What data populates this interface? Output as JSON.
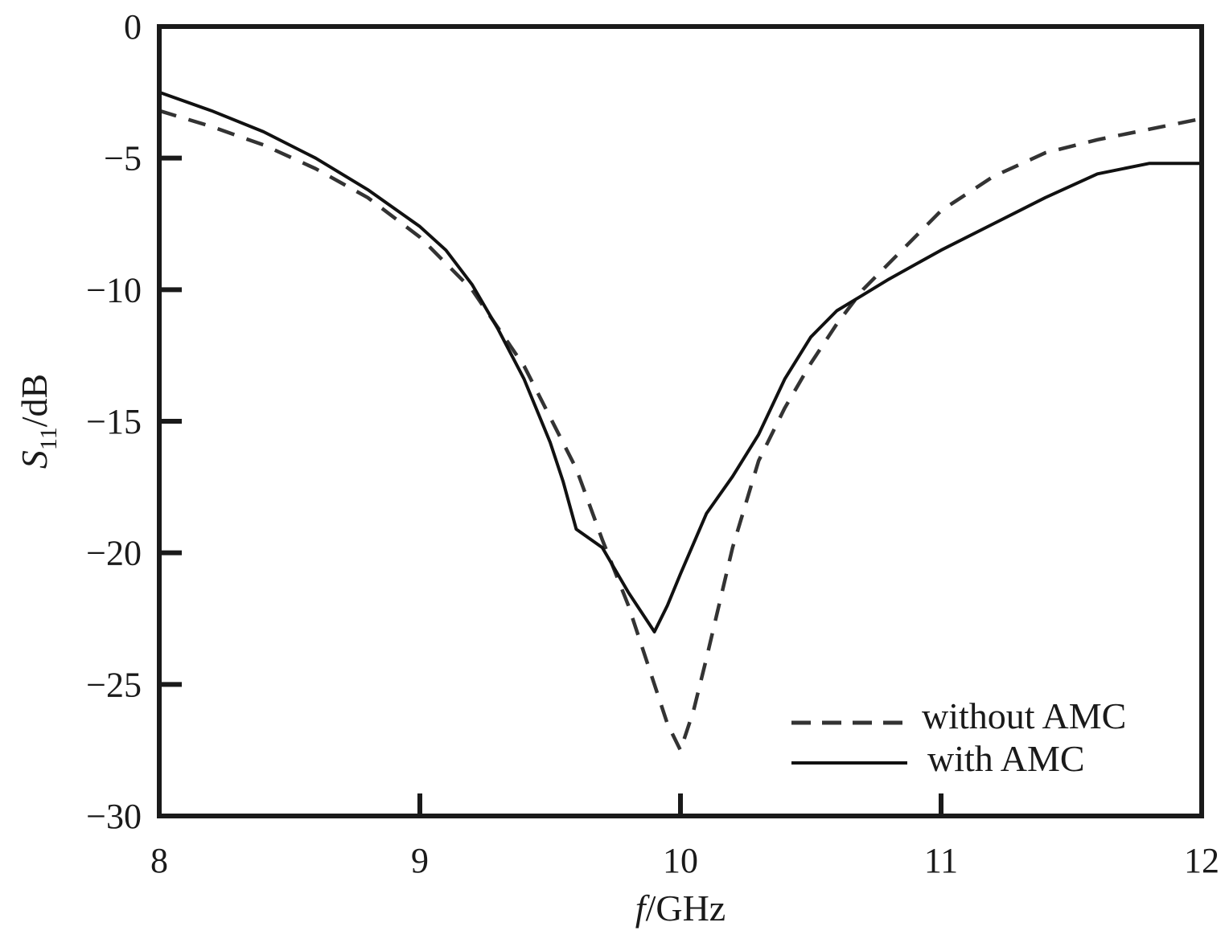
{
  "chart_data": {
    "type": "line",
    "xlabel": {
      "italic": "f",
      "rest": "/GHz"
    },
    "ylabel": {
      "italic": "S",
      "sub": "11",
      "rest": "/dB"
    },
    "xlim": [
      8,
      12
    ],
    "ylim": [
      -30,
      0
    ],
    "xticks": [
      8,
      9,
      10,
      11,
      12
    ],
    "xtick_labels": [
      "8",
      "9",
      "10",
      "11",
      "12"
    ],
    "yticks": [
      0,
      -5,
      -10,
      -15,
      -20,
      -25,
      -30
    ],
    "ytick_labels": [
      "0",
      "−5",
      "−10",
      "−15",
      "−20",
      "−25",
      "−30"
    ],
    "grid": false,
    "legend_position": "bottom-right",
    "series": [
      {
        "name": "without AMC",
        "style": "dashed",
        "color": "#333333",
        "x": [
          8.0,
          8.2,
          8.4,
          8.6,
          8.8,
          9.0,
          9.2,
          9.4,
          9.6,
          9.7,
          9.8,
          9.9,
          9.95,
          10.0,
          10.05,
          10.1,
          10.2,
          10.3,
          10.4,
          10.5,
          10.6,
          10.7,
          10.8,
          11.0,
          11.2,
          11.4,
          11.6,
          11.8,
          12.0
        ],
        "y": [
          -3.2,
          -3.8,
          -4.5,
          -5.4,
          -6.5,
          -8.0,
          -10.0,
          -12.9,
          -16.8,
          -19.5,
          -22.0,
          -25.0,
          -26.5,
          -27.5,
          -26.0,
          -24.0,
          -19.8,
          -16.5,
          -14.5,
          -12.8,
          -11.3,
          -10.0,
          -9.0,
          -7.0,
          -5.7,
          -4.8,
          -4.3,
          -3.9,
          -3.5
        ]
      },
      {
        "name": "with AMC",
        "style": "solid",
        "color": "#111111",
        "x": [
          8.0,
          8.2,
          8.4,
          8.6,
          8.8,
          9.0,
          9.1,
          9.2,
          9.3,
          9.4,
          9.5,
          9.55,
          9.6,
          9.7,
          9.8,
          9.9,
          9.95,
          10.0,
          10.1,
          10.2,
          10.3,
          10.4,
          10.5,
          10.6,
          10.7,
          10.8,
          11.0,
          11.2,
          11.4,
          11.6,
          11.8,
          12.0
        ],
        "y": [
          -2.5,
          -3.2,
          -4.0,
          -5.0,
          -6.2,
          -7.6,
          -8.5,
          -9.8,
          -11.5,
          -13.4,
          -15.8,
          -17.3,
          -19.1,
          -19.8,
          -21.5,
          -23.0,
          -22.0,
          -20.8,
          -18.5,
          -17.1,
          -15.5,
          -13.4,
          -11.8,
          -10.8,
          -10.2,
          -9.6,
          -8.5,
          -7.5,
          -6.5,
          -5.6,
          -5.2,
          -5.2
        ]
      }
    ]
  }
}
